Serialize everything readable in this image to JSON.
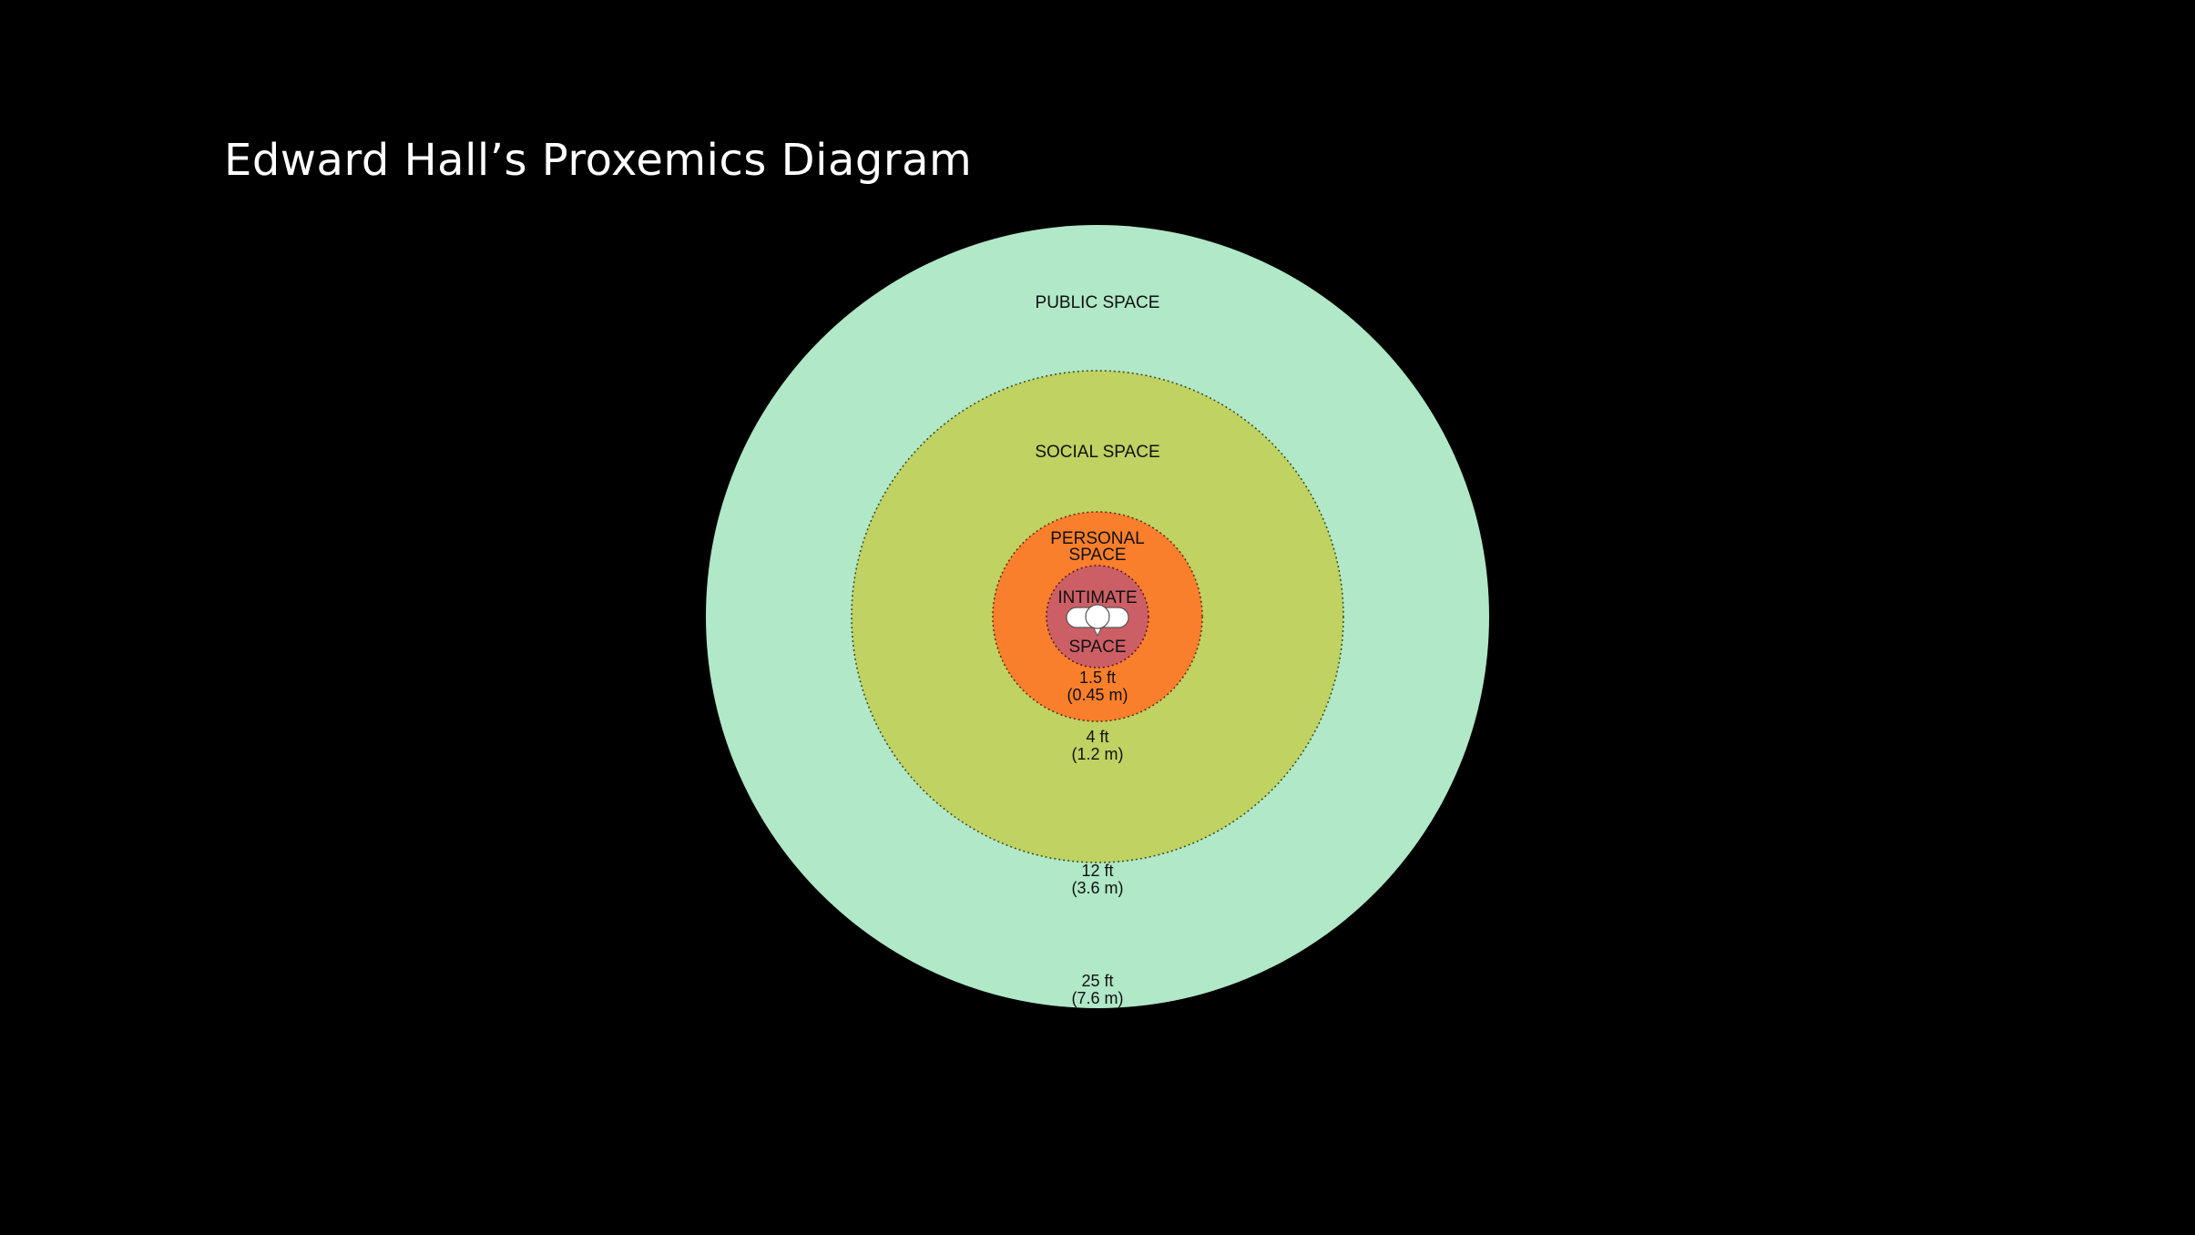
{
  "title": "Edward Hall’s Proxemics Diagram",
  "colors": {
    "background": "#000000",
    "public": "#b0e8c8",
    "social": "#bfd262",
    "personal": "#fa7f2c",
    "intimate": "#cc5f66"
  },
  "zones": {
    "public": {
      "label": "PUBLIC SPACE",
      "distance_ft": "25 ft",
      "distance_m": "(7.6 m)"
    },
    "social": {
      "label": "SOCIAL SPACE",
      "distance_ft": "12 ft",
      "distance_m": "(3.6 m)"
    },
    "personal": {
      "label_line1": "PERSONAL",
      "label_line2": "SPACE",
      "distance_ft": "4 ft",
      "distance_m": "(1.2 m)"
    },
    "intimate": {
      "label_line1": "INTIMATE",
      "label_line2": "SPACE",
      "distance_ft": "1.5 ft",
      "distance_m": "(0.45 m)"
    }
  },
  "center_icon": "person-icon"
}
